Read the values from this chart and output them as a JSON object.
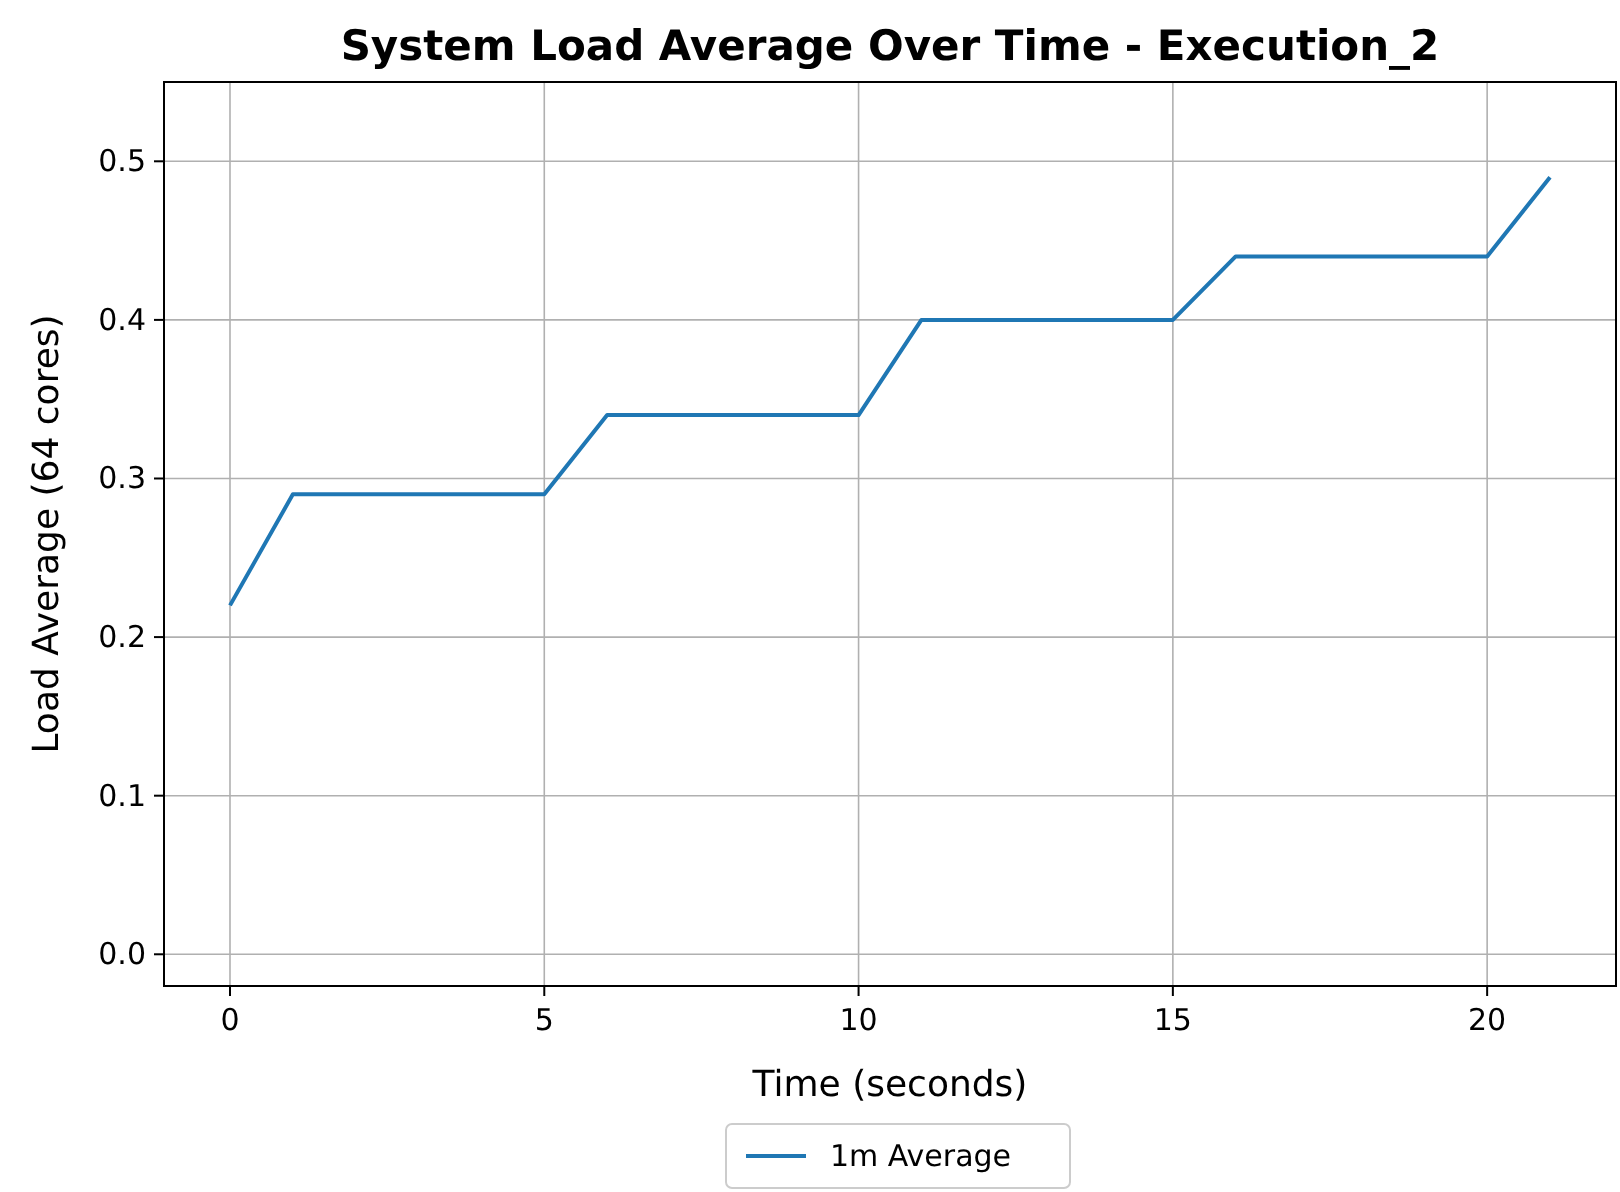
{
  "chart_data": {
    "type": "line",
    "title": "System Load Average Over Time - Execution_2",
    "xlabel": "Time (seconds)",
    "ylabel": "Load Average (64 cores)",
    "x": [
      0,
      1,
      2,
      3,
      4,
      5,
      6,
      7,
      8,
      9,
      10,
      11,
      12,
      13,
      14,
      15,
      16,
      17,
      18,
      19,
      20,
      21
    ],
    "series": [
      {
        "name": "1m Average",
        "color": "#1f77b4",
        "values": [
          0.22,
          0.29,
          0.29,
          0.29,
          0.29,
          0.29,
          0.34,
          0.34,
          0.34,
          0.34,
          0.34,
          0.4,
          0.4,
          0.4,
          0.4,
          0.4,
          0.44,
          0.44,
          0.44,
          0.44,
          0.44,
          0.49
        ]
      }
    ],
    "xlim": [
      -1.05,
      22.05
    ],
    "ylim": [
      -0.02,
      0.55
    ],
    "xticks": [
      0,
      5,
      10,
      15,
      20
    ],
    "yticks": [
      {
        "value": 0,
        "label": "0.0"
      },
      {
        "value": 0.1,
        "label": "0.1"
      },
      {
        "value": 0.2,
        "label": "0.2"
      },
      {
        "value": 0.3,
        "label": "0.3"
      },
      {
        "value": 0.4,
        "label": "0.4"
      },
      {
        "value": 0.5,
        "label": "0.5"
      }
    ],
    "grid": true,
    "legend": "bottom",
    "marker": "none",
    "line_style": "solid"
  }
}
